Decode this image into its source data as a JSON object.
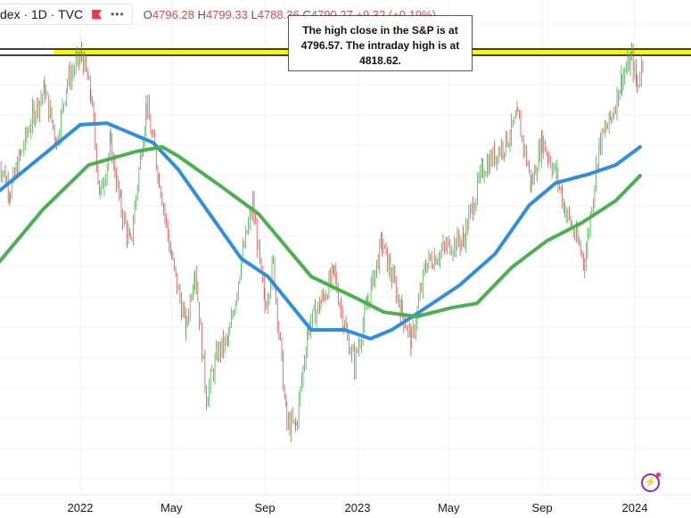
{
  "header": {
    "symbol": "dex · 1D · TVC",
    "flag_icon": "red-flag-icon",
    "more_icon": "more-dots-icon",
    "open_label": "O",
    "open": "4796.28",
    "high_label": "H",
    "high": "4799.33",
    "low_label": "L",
    "low": "4788.36",
    "close_label": "C",
    "close": "4790.27",
    "change": "+9.32 (+0.19%)"
  },
  "annotation": {
    "text": "The high close in the S&P is at 4796.57. The intraday high is at 4818.62."
  },
  "colors": {
    "up": "#4caf50",
    "down": "#d9534f",
    "ma_fast": "#2f8fdd",
    "ma_slow": "#4caf50",
    "highlight": "#f5f516",
    "annotation_border": "#c0282e"
  },
  "chart_data": {
    "type": "line",
    "title": "",
    "xlabel": "",
    "ylabel": "",
    "x_ticks": [
      "2022",
      "May",
      "Sep",
      "2023",
      "May",
      "Sep",
      "2024"
    ],
    "horizontal_level": 4796.57,
    "grid": true,
    "price_closes": [
      [
        "2021-09-15",
        4450
      ],
      [
        "2021-10-01",
        4350
      ],
      [
        "2021-10-15",
        4470
      ],
      [
        "2021-11-01",
        4610
      ],
      [
        "2021-11-15",
        4680
      ],
      [
        "2021-12-01",
        4510
      ],
      [
        "2021-12-15",
        4710
      ],
      [
        "2022-01-03",
        4796
      ],
      [
        "2022-01-15",
        4660
      ],
      [
        "2022-01-27",
        4330
      ],
      [
        "2022-02-10",
        4500
      ],
      [
        "2022-02-24",
        4290
      ],
      [
        "2022-03-08",
        4170
      ],
      [
        "2022-03-29",
        4630
      ],
      [
        "2022-04-15",
        4390
      ],
      [
        "2022-05-01",
        4130
      ],
      [
        "2022-05-20",
        3900
      ],
      [
        "2022-06-01",
        4100
      ],
      [
        "2022-06-16",
        3670
      ],
      [
        "2022-07-01",
        3820
      ],
      [
        "2022-07-15",
        3860
      ],
      [
        "2022-08-01",
        4120
      ],
      [
        "2022-08-16",
        4305
      ],
      [
        "2022-09-01",
        3970
      ],
      [
        "2022-09-12",
        4110
      ],
      [
        "2022-09-30",
        3585
      ],
      [
        "2022-10-12",
        3577
      ],
      [
        "2022-10-28",
        3900
      ],
      [
        "2022-11-15",
        3990
      ],
      [
        "2022-12-01",
        4080
      ],
      [
        "2022-12-15",
        3900
      ],
      [
        "2022-12-28",
        3783
      ],
      [
        "2023-01-15",
        3990
      ],
      [
        "2023-02-02",
        4180
      ],
      [
        "2023-03-01",
        3950
      ],
      [
        "2023-03-13",
        3855
      ],
      [
        "2023-04-01",
        4110
      ],
      [
        "2023-05-01",
        4170
      ],
      [
        "2023-05-20",
        4190
      ],
      [
        "2023-06-15",
        4420
      ],
      [
        "2023-07-15",
        4510
      ],
      [
        "2023-07-31",
        4590
      ],
      [
        "2023-08-18",
        4370
      ],
      [
        "2023-09-01",
        4515
      ],
      [
        "2023-09-20",
        4400
      ],
      [
        "2023-10-01",
        4290
      ],
      [
        "2023-10-27",
        4117
      ],
      [
        "2023-11-15",
        4500
      ],
      [
        "2023-12-01",
        4590
      ],
      [
        "2023-12-15",
        4720
      ],
      [
        "2023-12-28",
        4783
      ],
      [
        "2024-01-04",
        4690
      ],
      [
        "2024-01-12",
        4790
      ]
    ],
    "series": [
      {
        "color": "#2f8fdd",
        "points": [
          [
            "2021-09-15",
            4346
          ],
          [
            "2022-01-01",
            4566
          ],
          [
            "2022-02-05",
            4571
          ],
          [
            "2022-04-07",
            4507
          ],
          [
            "2022-05-10",
            4419
          ],
          [
            "2022-07-07",
            4215
          ],
          [
            "2022-08-01",
            4127
          ],
          [
            "2022-09-05",
            4068
          ],
          [
            "2022-11-01",
            3893
          ],
          [
            "2022-12-15",
            3893
          ],
          [
            "2023-01-18",
            3864
          ],
          [
            "2023-02-15",
            3893
          ],
          [
            "2023-03-20",
            3946
          ],
          [
            "2023-05-15",
            4039
          ],
          [
            "2023-07-01",
            4142
          ],
          [
            "2023-08-15",
            4302
          ],
          [
            "2023-09-19",
            4375
          ],
          [
            "2023-11-03",
            4405
          ],
          [
            "2023-12-07",
            4434
          ],
          [
            "2024-01-08",
            4493
          ]
        ]
      },
      {
        "color": "#4caf50",
        "points": [
          [
            "2021-09-15",
            4112
          ],
          [
            "2021-11-13",
            4288
          ],
          [
            "2022-01-12",
            4434
          ],
          [
            "2022-03-15",
            4478
          ],
          [
            "2022-04-19",
            4493
          ],
          [
            "2022-05-10",
            4463
          ],
          [
            "2022-07-07",
            4361
          ],
          [
            "2022-08-24",
            4273
          ],
          [
            "2022-11-01",
            4068
          ],
          [
            "2023-01-01",
            3995
          ],
          [
            "2023-02-05",
            3951
          ],
          [
            "2023-03-20",
            3937
          ],
          [
            "2023-05-05",
            3966
          ],
          [
            "2023-06-07",
            3980
          ],
          [
            "2023-07-23",
            4098
          ],
          [
            "2023-09-07",
            4185
          ],
          [
            "2023-10-23",
            4244
          ],
          [
            "2023-12-07",
            4317
          ],
          [
            "2024-01-08",
            4399
          ]
        ]
      }
    ]
  }
}
